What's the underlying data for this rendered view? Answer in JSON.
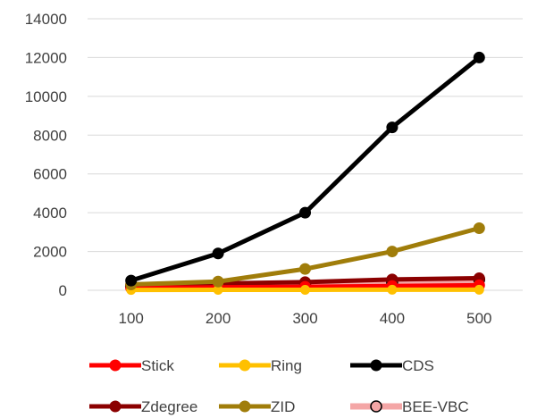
{
  "chart_data": {
    "type": "line",
    "title": "",
    "xlabel": "",
    "ylabel": "",
    "x": [
      100,
      200,
      300,
      400,
      500
    ],
    "ylim": [
      0,
      14000
    ],
    "yticks": [
      0,
      2000,
      4000,
      6000,
      8000,
      10000,
      12000,
      14000
    ],
    "grid": "horizontal",
    "legend_position": "bottom",
    "series": [
      {
        "name": "Stick",
        "color": "#FF0000",
        "marker_fill": "#FF0000",
        "values": [
          120,
          150,
          180,
          220,
          260
        ]
      },
      {
        "name": "Ring",
        "color": "#FFC000",
        "marker_fill": "#FFC000",
        "values": [
          20,
          25,
          25,
          30,
          30
        ]
      },
      {
        "name": "CDS",
        "color": "#000000",
        "marker_fill": "#000000",
        "values": [
          500,
          1900,
          4000,
          8400,
          12000
        ]
      },
      {
        "name": "Zdegree",
        "color": "#8B0000",
        "marker_fill": "#8B0000",
        "values": [
          300,
          350,
          420,
          560,
          620
        ]
      },
      {
        "name": "ZID",
        "color": "#A07D0A",
        "marker_fill": "#A07D0A",
        "values": [
          300,
          450,
          1100,
          2000,
          3200
        ]
      },
      {
        "name": "BEE-VBC",
        "color": "#F4A6A6",
        "marker_fill": "#F4A6A6",
        "marker_stroke": "#000000",
        "values": [
          200,
          270,
          320,
          400,
          560
        ]
      }
    ]
  }
}
